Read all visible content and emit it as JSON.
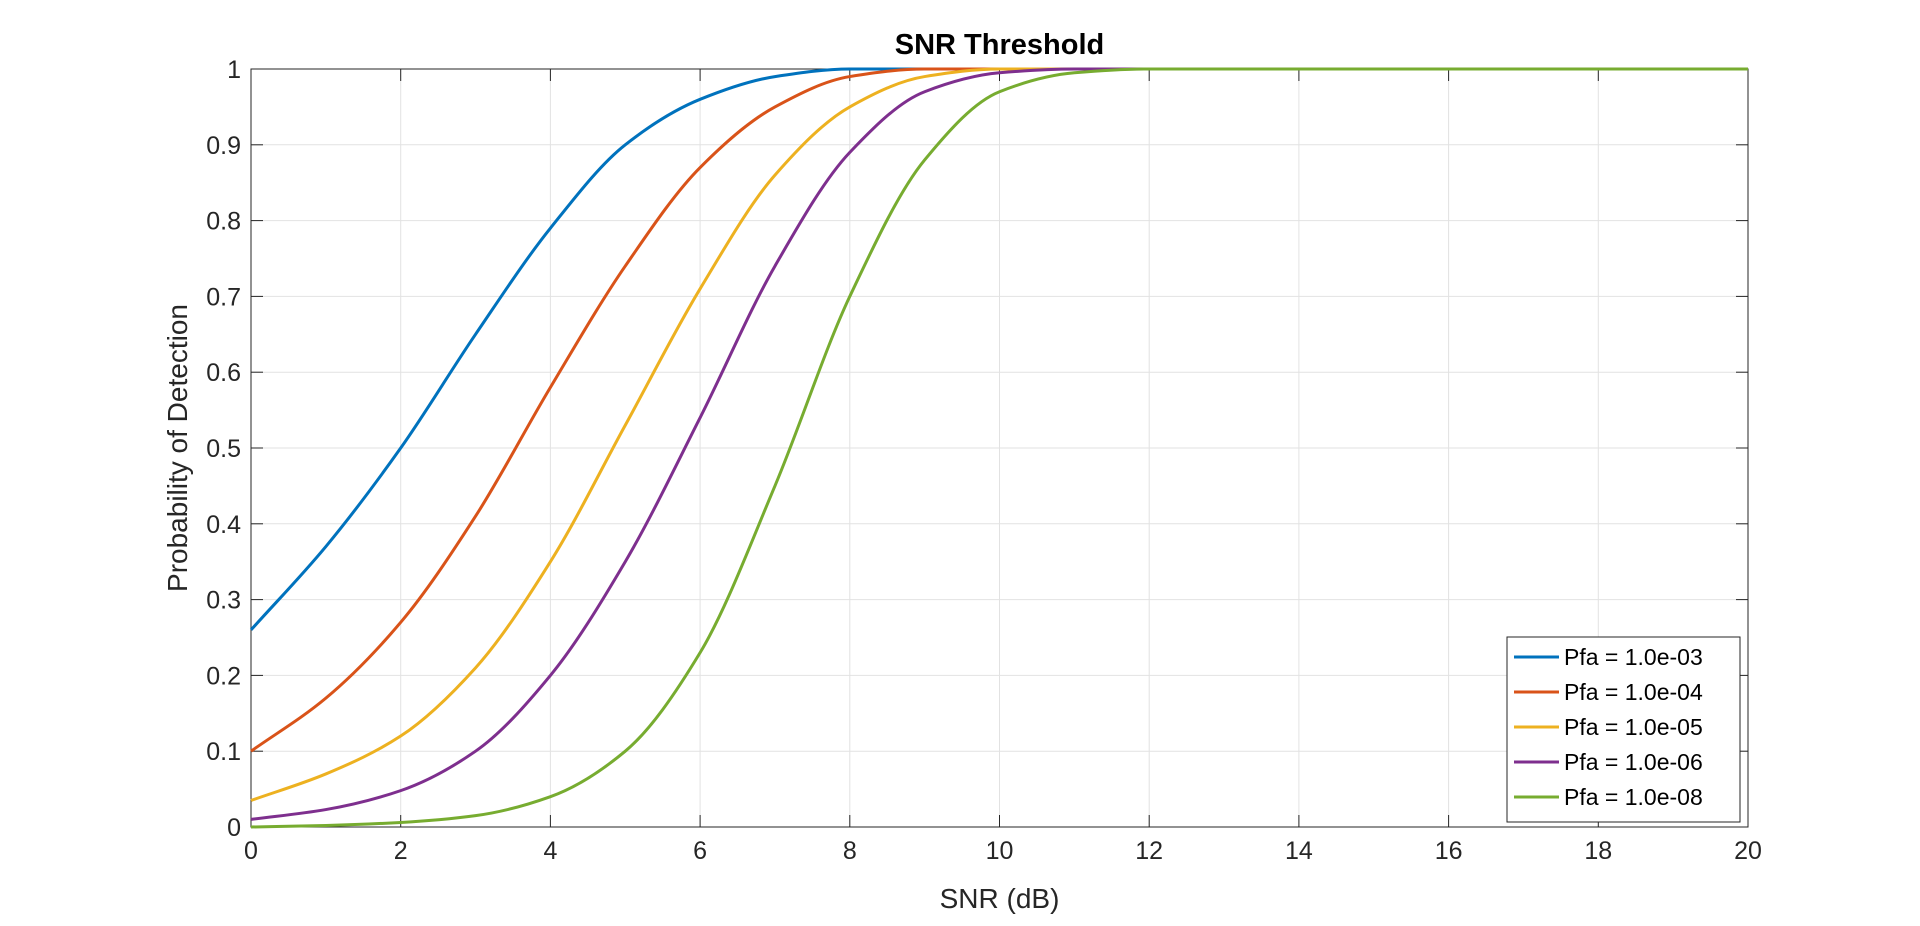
{
  "chart_data": {
    "type": "line",
    "title": "SNR Threshold",
    "xlabel": "SNR (dB)",
    "ylabel": "Probability of Detection",
    "xlim": [
      0,
      20
    ],
    "ylim": [
      0,
      1
    ],
    "xticks": [
      0,
      2,
      4,
      6,
      8,
      10,
      12,
      14,
      16,
      18,
      20
    ],
    "yticks": [
      0,
      0.1,
      0.2,
      0.3,
      0.4,
      0.5,
      0.6,
      0.7,
      0.8,
      0.9,
      1
    ],
    "xtick_labels": [
      "0",
      "2",
      "4",
      "6",
      "8",
      "10",
      "12",
      "14",
      "16",
      "18",
      "20"
    ],
    "ytick_labels": [
      "0",
      "0.1",
      "0.2",
      "0.3",
      "0.4",
      "0.5",
      "0.6",
      "0.7",
      "0.8",
      "0.9",
      "1"
    ],
    "grid": true,
    "legend_position": "bottom-right",
    "x": [
      0,
      1,
      2,
      3,
      4,
      5,
      6,
      7,
      8,
      9,
      10,
      11,
      12,
      13,
      14,
      15,
      16,
      17,
      18,
      19,
      20
    ],
    "series": [
      {
        "name": "Pfa = 1.0e-03",
        "color": "#0072BD",
        "values": [
          0.26,
          0.37,
          0.5,
          0.65,
          0.79,
          0.9,
          0.96,
          0.99,
          1.0,
          1.0,
          1.0,
          1.0,
          1.0,
          1.0,
          1.0,
          1.0,
          1.0,
          1.0,
          1.0,
          1.0,
          1.0
        ]
      },
      {
        "name": "Pfa = 1.0e-04",
        "color": "#D95319",
        "values": [
          0.1,
          0.17,
          0.27,
          0.41,
          0.58,
          0.74,
          0.87,
          0.95,
          0.99,
          1.0,
          1.0,
          1.0,
          1.0,
          1.0,
          1.0,
          1.0,
          1.0,
          1.0,
          1.0,
          1.0,
          1.0
        ]
      },
      {
        "name": "Pfa = 1.0e-05",
        "color": "#EDB120",
        "values": [
          0.035,
          0.07,
          0.12,
          0.21,
          0.35,
          0.53,
          0.71,
          0.86,
          0.95,
          0.99,
          1.0,
          1.0,
          1.0,
          1.0,
          1.0,
          1.0,
          1.0,
          1.0,
          1.0,
          1.0,
          1.0
        ]
      },
      {
        "name": "Pfa = 1.0e-06",
        "color": "#7E2F8E",
        "values": [
          0.01,
          0.023,
          0.048,
          0.1,
          0.2,
          0.35,
          0.54,
          0.74,
          0.89,
          0.97,
          0.995,
          1.0,
          1.0,
          1.0,
          1.0,
          1.0,
          1.0,
          1.0,
          1.0,
          1.0,
          1.0
        ]
      },
      {
        "name": "Pfa = 1.0e-08",
        "color": "#77AC30",
        "values": [
          0.0,
          0.002,
          0.006,
          0.015,
          0.04,
          0.1,
          0.23,
          0.45,
          0.7,
          0.88,
          0.97,
          0.995,
          1.0,
          1.0,
          1.0,
          1.0,
          1.0,
          1.0,
          1.0,
          1.0,
          1.0
        ]
      }
    ]
  }
}
